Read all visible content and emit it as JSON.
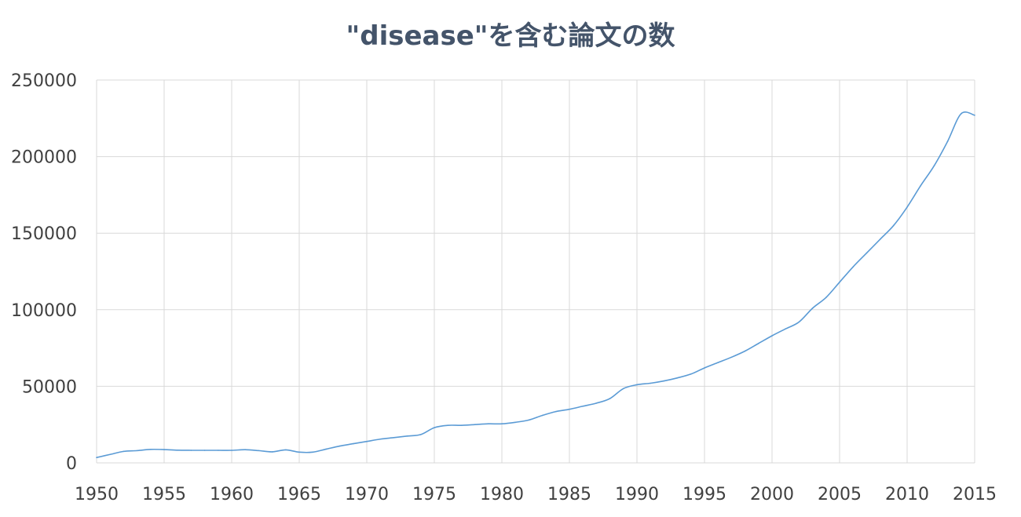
{
  "chart_data": {
    "type": "line",
    "title": "\"disease\"を含む論文の数",
    "xlabel": "",
    "ylabel": "",
    "xlim": [
      1950,
      2015
    ],
    "ylim": [
      0,
      250000
    ],
    "x_ticks": [
      "1950",
      "1955",
      "1960",
      "1965",
      "1970",
      "1975",
      "1980",
      "1985",
      "1990",
      "1995",
      "2000",
      "2005",
      "2010",
      "2015"
    ],
    "y_ticks": [
      "250000",
      "200000",
      "150000",
      "100000",
      "50000",
      "0"
    ],
    "grid": true,
    "legend": "none",
    "line_color": "#5b9bd5",
    "series": [
      {
        "x": [
          1950,
          1951,
          1952,
          1953,
          1954,
          1955,
          1956,
          1957,
          1958,
          1959,
          1960,
          1961,
          1962,
          1963,
          1964,
          1965,
          1966,
          1967,
          1968,
          1969,
          1970,
          1971,
          1972,
          1973,
          1974,
          1975,
          1976,
          1977,
          1978,
          1979,
          1980,
          1981,
          1982,
          1983,
          1984,
          1985,
          1986,
          1987,
          1988,
          1989,
          1990,
          1991,
          1992,
          1993,
          1994,
          1995,
          1996,
          1997,
          1998,
          1999,
          2000,
          2001,
          2002,
          2003,
          2004,
          2005,
          2006,
          2007,
          2008,
          2009,
          2010,
          2011,
          2012,
          2013,
          2014,
          2015
        ],
        "values": [
          3500,
          5500,
          7500,
          8000,
          8800,
          8700,
          8300,
          8200,
          8200,
          8200,
          8200,
          8600,
          8000,
          7200,
          8500,
          7000,
          7000,
          9000,
          11000,
          12500,
          14000,
          15500,
          16500,
          17500,
          18500,
          23000,
          24500,
          24500,
          25000,
          25500,
          25500,
          26500,
          28000,
          31000,
          33500,
          35000,
          37000,
          39000,
          42000,
          48500,
          51000,
          52000,
          53500,
          55500,
          58000,
          62000,
          65500,
          69000,
          73000,
          78000,
          83000,
          87500,
          92000,
          101000,
          108000,
          118000,
          128000,
          137000,
          146000,
          155000,
          167000,
          181000,
          194000,
          210000,
          228000,
          227000
        ]
      }
    ]
  }
}
